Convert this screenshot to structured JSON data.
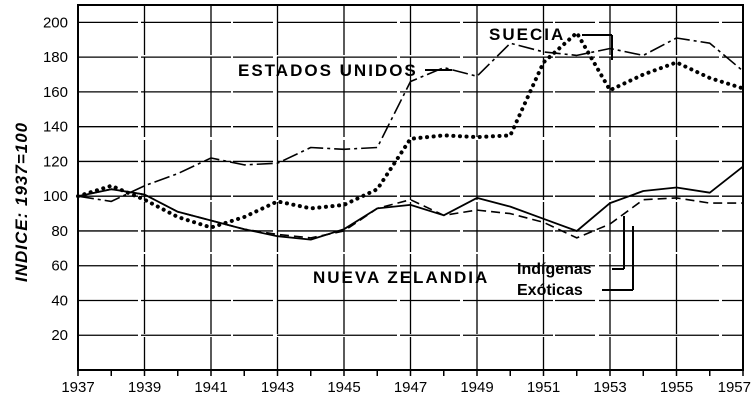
{
  "chart_data": {
    "type": "line",
    "ylabel": "INDICE: 1937=100",
    "xlim": [
      1937,
      1957
    ],
    "ylim": [
      0,
      210
    ],
    "x_ticks": [
      "1937",
      "1939",
      "1941",
      "1943",
      "1945",
      "1947",
      "1949",
      "1951",
      "1953",
      "1955",
      "1957"
    ],
    "y_ticks": [
      "20",
      "40",
      "60",
      "80",
      "100",
      "120",
      "140",
      "160",
      "180",
      "200"
    ],
    "grid": true,
    "annotations": {
      "suecia": "SUECIA",
      "estados_unidos": "ESTADOS UNIDOS",
      "nueva_zelandia": "NUEVA ZELANDIA",
      "indigenas": "Indígenas",
      "exoticas": "Exóticas"
    },
    "series": [
      {
        "name": "SUECIA",
        "style": "dashdot",
        "x": [
          1937,
          1938,
          1939,
          1940,
          1941,
          1942,
          1943,
          1944,
          1945,
          1946,
          1947,
          1948,
          1949,
          1950,
          1951,
          1952,
          1953,
          1954,
          1955,
          1956,
          1957
        ],
        "y": [
          100,
          97,
          106,
          113,
          122,
          118,
          119,
          128,
          127,
          128,
          166,
          174,
          169,
          188,
          183,
          181,
          185,
          181,
          191,
          188,
          172
        ]
      },
      {
        "name": "ESTADOS UNIDOS",
        "style": "dotted",
        "x": [
          1937,
          1938,
          1939,
          1940,
          1941,
          1942,
          1943,
          1944,
          1945,
          1946,
          1947,
          1948,
          1949,
          1950,
          1951,
          1952,
          1953,
          1954,
          1955,
          1956,
          1957
        ],
        "y": [
          100,
          106,
          98,
          88,
          82,
          88,
          97,
          93,
          95,
          104,
          133,
          135,
          134,
          135,
          177,
          194,
          161,
          170,
          177,
          168,
          162
        ]
      },
      {
        "name": "Indígenas",
        "style": "solid",
        "x": [
          1937,
          1938,
          1939,
          1940,
          1941,
          1942,
          1943,
          1944,
          1945,
          1946,
          1947,
          1948,
          1949,
          1950,
          1951,
          1952,
          1953,
          1954,
          1955,
          1956,
          1957
        ],
        "y": [
          100,
          104,
          101,
          91,
          86,
          81,
          77,
          75,
          81,
          93,
          95,
          89,
          99,
          94,
          87,
          80,
          96,
          103,
          105,
          102,
          117
        ]
      },
      {
        "name": "Exóticas",
        "style": "dashed",
        "x": [
          1937,
          1938,
          1939,
          1940,
          1941,
          1942,
          1943,
          1944,
          1945,
          1946,
          1947,
          1948,
          1949,
          1950,
          1951,
          1952,
          1953,
          1954,
          1955,
          1956,
          1957
        ],
        "y": [
          100,
          104,
          101,
          91,
          86,
          81,
          78,
          76,
          80,
          93,
          98,
          89,
          92,
          90,
          85,
          76,
          84,
          98,
          99,
          96,
          96
        ]
      }
    ]
  }
}
